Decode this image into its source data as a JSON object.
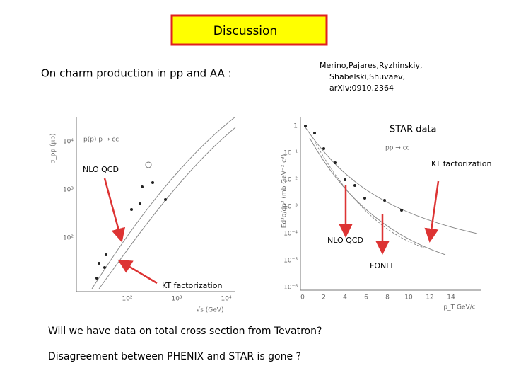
{
  "title": "Discussion",
  "subtitle": "On charm production in pp and AA :",
  "reference": [
    "Merino,Pajares,Ryzhinskiy,",
    "Shabelski,Shuvaev,",
    "arXiv:0910.2364"
  ],
  "annotations": {
    "star_data": "STAR data",
    "kt_right": "KT factorization",
    "nlo_left": "NLO QCD",
    "nlo_mid": "NLO QCD",
    "fonll": "FONLL",
    "kt_bottom": "KT factorization"
  },
  "left_plot": {
    "y_label": "σ_pp (μb)",
    "x_label": "√s (GeV)",
    "process": "p̄(p) p → c̄c",
    "yticks": [
      "10⁴",
      "10³",
      "10²"
    ],
    "xticks": [
      "10²",
      "10³",
      "10⁴"
    ]
  },
  "right_plot": {
    "y_label": "Ed³σ/dp³ (mb GeV⁻² c³)",
    "x_label": "p_T GeV/c",
    "process": "pp → cc",
    "yticks": [
      "1",
      "10⁻¹",
      "10⁻²",
      "10⁻³",
      "10⁻⁴",
      "10⁻⁵",
      "10⁻⁶"
    ],
    "xticks": [
      "0",
      "2",
      "4",
      "6",
      "8",
      "10",
      "12",
      "14"
    ]
  },
  "questions": [
    "Will we have data on total cross section from Tevatron?",
    "Disagreement between PHENIX and STAR is gone ?"
  ]
}
